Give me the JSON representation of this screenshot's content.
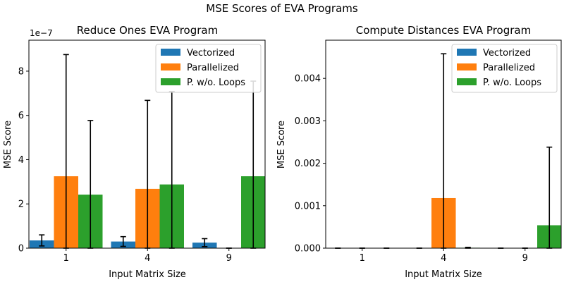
{
  "suptitle": "MSE Scores of EVA Programs",
  "chart_data": [
    {
      "type": "bar",
      "title": "Reduce Ones EVA Program",
      "xlabel": "Input Matrix Size",
      "ylabel": "MSE Score",
      "yaxis_offset_text": "1e−7",
      "categories": [
        "1",
        "4",
        "9"
      ],
      "ylim": [
        0,
        9.4
      ],
      "yticks": [
        0,
        2,
        4,
        6,
        8
      ],
      "ytick_labels": [
        "0",
        "2",
        "4",
        "6",
        "8"
      ],
      "legend_position": "top-right",
      "grid": false,
      "series": [
        {
          "name": "Vectorized",
          "color": "#1f77b4",
          "values": [
            0.35,
            0.3,
            0.25
          ],
          "errors": [
            0.25,
            0.22,
            0.18
          ]
        },
        {
          "name": "Parallelized",
          "color": "#ff7f0e",
          "values": [
            3.25,
            2.68,
            0.0
          ],
          "errors": [
            5.5,
            4.0,
            0.0
          ]
        },
        {
          "name": "P. w/o. Loops",
          "color": "#2ca02c",
          "values": [
            2.42,
            2.88,
            3.25
          ],
          "errors": [
            3.35,
            4.2,
            4.3
          ]
        }
      ]
    },
    {
      "type": "bar",
      "title": "Compute Distances EVA Program",
      "xlabel": "Input Matrix Size",
      "ylabel": "MSE Score",
      "categories": [
        "1",
        "4",
        "9"
      ],
      "ylim": [
        0,
        0.0049
      ],
      "yticks": [
        0,
        0.001,
        0.002,
        0.003,
        0.004
      ],
      "ytick_labels": [
        "0.000",
        "0.001",
        "0.002",
        "0.003",
        "0.004"
      ],
      "legend_position": "top-right",
      "grid": false,
      "series": [
        {
          "name": "Vectorized",
          "color": "#1f77b4",
          "values": [
            0.0,
            0.0,
            0.0
          ],
          "errors": [
            0.0,
            0.0,
            0.0
          ]
        },
        {
          "name": "Parallelized",
          "color": "#ff7f0e",
          "values": [
            0.0,
            0.00118,
            0.0
          ],
          "errors": [
            0.0,
            0.0034,
            0.0
          ]
        },
        {
          "name": "P. w/o. Loops",
          "color": "#2ca02c",
          "values": [
            0.0,
            1e-05,
            0.00054
          ],
          "errors": [
            0.0,
            1e-05,
            0.00184
          ]
        }
      ]
    }
  ]
}
